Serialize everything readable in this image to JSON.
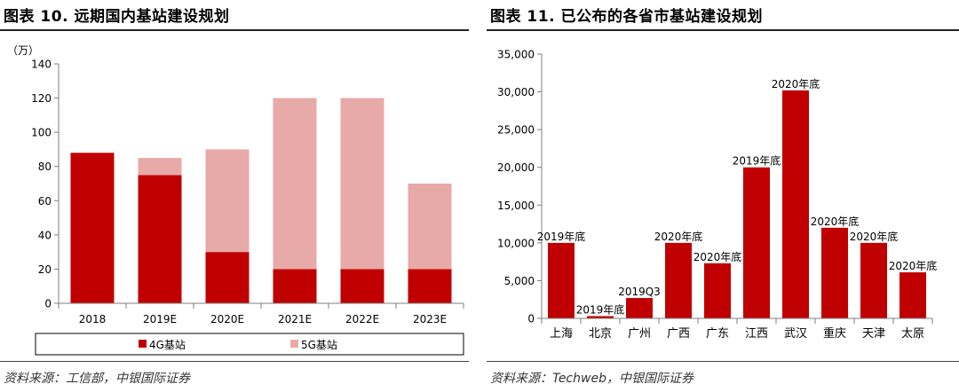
{
  "colors": {
    "g4": "#c00000",
    "g5": "#e8a9a9",
    "axis": "#7f7f7f",
    "grid": "#d9d9d9"
  },
  "left": {
    "title": "图表 10. 远期国内基站建设规划",
    "source": "资料来源：工信部，中银国际证券",
    "unit": "（万）"
  },
  "right": {
    "title": "图表 11. 已公布的各省市基站建设规划",
    "source": "资料来源：Techweb，中银国际证券"
  },
  "chart_data": [
    {
      "type": "bar",
      "stacked": true,
      "categories": [
        "2018",
        "2019E",
        "2020E",
        "2021E",
        "2022E",
        "2023E"
      ],
      "series": [
        {
          "name": "4G基站",
          "color": "#c00000",
          "values": [
            88,
            75,
            30,
            20,
            20,
            20
          ]
        },
        {
          "name": "5G基站",
          "color": "#e8a9a9",
          "values": [
            0,
            10,
            60,
            100,
            100,
            50
          ]
        }
      ],
      "ylabel": "（万）",
      "ylim": [
        0,
        140
      ],
      "yticks": [
        "0",
        "20",
        "40",
        "60",
        "80",
        "100",
        "120",
        "140"
      ],
      "grid": false,
      "legend": "bottom"
    },
    {
      "type": "bar",
      "categories": [
        "上海",
        "北京",
        "广州",
        "广西",
        "广东",
        "江西",
        "武汉",
        "重庆",
        "天津",
        "太原"
      ],
      "values": [
        10000,
        300,
        2700,
        10000,
        7300,
        20000,
        30200,
        12000,
        10000,
        6100
      ],
      "annotations": [
        "2019年底",
        "2019年底",
        "2019Q3",
        "2020年底",
        "2020年底",
        "2019年底",
        "2020年底",
        "2020年底",
        "2020年底",
        "2020年底"
      ],
      "color": "#c00000",
      "ylim": [
        0,
        35000
      ],
      "yticks": [
        "0",
        "5,000",
        "10,000",
        "15,000",
        "20,000",
        "25,000",
        "30,000",
        "35,000"
      ],
      "grid": false,
      "legend": "none"
    }
  ]
}
